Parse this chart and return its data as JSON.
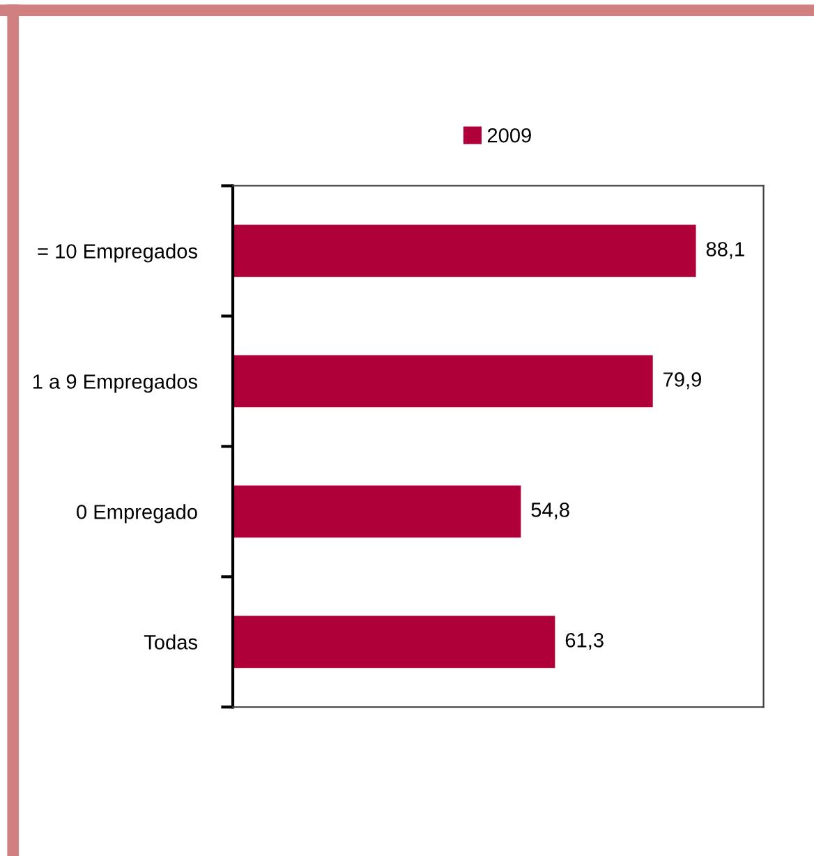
{
  "chart_data": {
    "type": "bar",
    "orientation": "horizontal",
    "categories": [
      "= 10 Empregados",
      "1 a 9 Empregados",
      "0 Empregado",
      "Todas"
    ],
    "series": [
      {
        "name": "2009",
        "color": "#b0003a",
        "values": [
          88.1,
          79.9,
          54.8,
          61.3
        ],
        "value_labels": [
          "88,1",
          "79,9",
          "54,8",
          "61,3"
        ]
      }
    ],
    "tick_labels": "y",
    "legend": "top",
    "grid": false
  }
}
